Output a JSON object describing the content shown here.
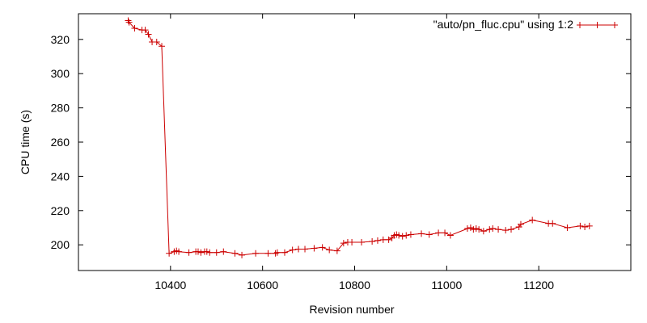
{
  "chart_data": {
    "type": "line",
    "title": "",
    "xlabel": "Revision number",
    "ylabel": "CPU time (s)",
    "xlim": [
      10200,
      11400
    ],
    "ylim": [
      185,
      335
    ],
    "x_ticks": [
      10400,
      10600,
      10800,
      11000,
      11200
    ],
    "y_ticks": [
      200,
      220,
      240,
      260,
      280,
      300,
      320
    ],
    "grid": false,
    "legend_position": "top-right",
    "series": [
      {
        "name": "\"auto/pn_fluc.cpu\" using 1:2",
        "color": "#cc0000",
        "marker": "plus",
        "points": [
          [
            10308,
            331
          ],
          [
            10310,
            330
          ],
          [
            10322,
            326.5
          ],
          [
            10338,
            325.5
          ],
          [
            10345,
            325.5
          ],
          [
            10352,
            323
          ],
          [
            10360,
            318.5
          ],
          [
            10370,
            318.5
          ],
          [
            10381,
            316
          ],
          [
            10397,
            195
          ],
          [
            10408,
            196
          ],
          [
            10413,
            196.5
          ],
          [
            10418,
            196
          ],
          [
            10440,
            195.5
          ],
          [
            10455,
            196
          ],
          [
            10460,
            196
          ],
          [
            10466,
            195.5
          ],
          [
            10474,
            196
          ],
          [
            10479,
            196
          ],
          [
            10485,
            195.5
          ],
          [
            10500,
            195.5
          ],
          [
            10515,
            196
          ],
          [
            10540,
            195
          ],
          [
            10555,
            194
          ],
          [
            10585,
            195
          ],
          [
            10612,
            195
          ],
          [
            10628,
            195
          ],
          [
            10632,
            195.5
          ],
          [
            10648,
            195.5
          ],
          [
            10665,
            197
          ],
          [
            10678,
            197.5
          ],
          [
            10692,
            197.5
          ],
          [
            10712,
            198
          ],
          [
            10730,
            198.5
          ],
          [
            10745,
            197
          ],
          [
            10762,
            196.5
          ],
          [
            10776,
            201
          ],
          [
            10785,
            201.5
          ],
          [
            10794,
            201.5
          ],
          [
            10815,
            201.5
          ],
          [
            10838,
            202
          ],
          [
            10850,
            202.5
          ],
          [
            10862,
            203
          ],
          [
            10874,
            203
          ],
          [
            10881,
            204
          ],
          [
            10886,
            205.5
          ],
          [
            10891,
            206
          ],
          [
            10896,
            205.5
          ],
          [
            10904,
            205
          ],
          [
            10912,
            205.5
          ],
          [
            10922,
            206
          ],
          [
            10945,
            206.5
          ],
          [
            10962,
            206
          ],
          [
            10982,
            207
          ],
          [
            10996,
            207
          ],
          [
            11008,
            205.5
          ],
          [
            11045,
            209.5
          ],
          [
            11052,
            210
          ],
          [
            11058,
            209
          ],
          [
            11064,
            209.5
          ],
          [
            11070,
            209
          ],
          [
            11080,
            208
          ],
          [
            11093,
            209
          ],
          [
            11100,
            209.5
          ],
          [
            11112,
            209
          ],
          [
            11128,
            208.5
          ],
          [
            11140,
            209
          ],
          [
            11157,
            210.5
          ],
          [
            11161,
            212
          ],
          [
            11186,
            214.5
          ],
          [
            11221,
            212.5
          ],
          [
            11230,
            212.5
          ],
          [
            11262,
            210
          ],
          [
            11290,
            211
          ],
          [
            11300,
            210.5
          ],
          [
            11310,
            211
          ]
        ]
      }
    ]
  }
}
